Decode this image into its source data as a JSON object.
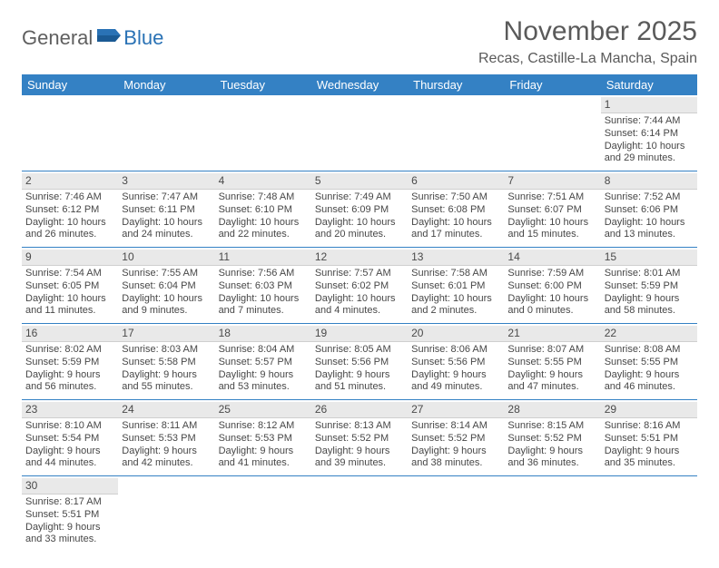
{
  "logo": {
    "textGray": "General",
    "textBlue": "Blue"
  },
  "title": "November 2025",
  "location": "Recas, Castille-La Mancha, Spain",
  "dayNames": [
    "Sunday",
    "Monday",
    "Tuesday",
    "Wednesday",
    "Thursday",
    "Friday",
    "Saturday"
  ],
  "colors": {
    "headerBg": "#3481c4",
    "headerText": "#ffffff",
    "dayNumBg": "#e9e9e9",
    "dayBorder": "#3481c4",
    "textGray": "#5a5a5a",
    "bodyText": "#474747",
    "logoGray": "#5f5f5f",
    "logoBlue": "#2a72b5"
  },
  "weeks": [
    [
      null,
      null,
      null,
      null,
      null,
      null,
      {
        "n": "1",
        "sr": "7:44 AM",
        "ss": "6:14 PM",
        "dl": "10 hours and 29 minutes."
      }
    ],
    [
      {
        "n": "2",
        "sr": "7:46 AM",
        "ss": "6:12 PM",
        "dl": "10 hours and 26 minutes."
      },
      {
        "n": "3",
        "sr": "7:47 AM",
        "ss": "6:11 PM",
        "dl": "10 hours and 24 minutes."
      },
      {
        "n": "4",
        "sr": "7:48 AM",
        "ss": "6:10 PM",
        "dl": "10 hours and 22 minutes."
      },
      {
        "n": "5",
        "sr": "7:49 AM",
        "ss": "6:09 PM",
        "dl": "10 hours and 20 minutes."
      },
      {
        "n": "6",
        "sr": "7:50 AM",
        "ss": "6:08 PM",
        "dl": "10 hours and 17 minutes."
      },
      {
        "n": "7",
        "sr": "7:51 AM",
        "ss": "6:07 PM",
        "dl": "10 hours and 15 minutes."
      },
      {
        "n": "8",
        "sr": "7:52 AM",
        "ss": "6:06 PM",
        "dl": "10 hours and 13 minutes."
      }
    ],
    [
      {
        "n": "9",
        "sr": "7:54 AM",
        "ss": "6:05 PM",
        "dl": "10 hours and 11 minutes."
      },
      {
        "n": "10",
        "sr": "7:55 AM",
        "ss": "6:04 PM",
        "dl": "10 hours and 9 minutes."
      },
      {
        "n": "11",
        "sr": "7:56 AM",
        "ss": "6:03 PM",
        "dl": "10 hours and 7 minutes."
      },
      {
        "n": "12",
        "sr": "7:57 AM",
        "ss": "6:02 PM",
        "dl": "10 hours and 4 minutes."
      },
      {
        "n": "13",
        "sr": "7:58 AM",
        "ss": "6:01 PM",
        "dl": "10 hours and 2 minutes."
      },
      {
        "n": "14",
        "sr": "7:59 AM",
        "ss": "6:00 PM",
        "dl": "10 hours and 0 minutes."
      },
      {
        "n": "15",
        "sr": "8:01 AM",
        "ss": "5:59 PM",
        "dl": "9 hours and 58 minutes."
      }
    ],
    [
      {
        "n": "16",
        "sr": "8:02 AM",
        "ss": "5:59 PM",
        "dl": "9 hours and 56 minutes."
      },
      {
        "n": "17",
        "sr": "8:03 AM",
        "ss": "5:58 PM",
        "dl": "9 hours and 55 minutes."
      },
      {
        "n": "18",
        "sr": "8:04 AM",
        "ss": "5:57 PM",
        "dl": "9 hours and 53 minutes."
      },
      {
        "n": "19",
        "sr": "8:05 AM",
        "ss": "5:56 PM",
        "dl": "9 hours and 51 minutes."
      },
      {
        "n": "20",
        "sr": "8:06 AM",
        "ss": "5:56 PM",
        "dl": "9 hours and 49 minutes."
      },
      {
        "n": "21",
        "sr": "8:07 AM",
        "ss": "5:55 PM",
        "dl": "9 hours and 47 minutes."
      },
      {
        "n": "22",
        "sr": "8:08 AM",
        "ss": "5:55 PM",
        "dl": "9 hours and 46 minutes."
      }
    ],
    [
      {
        "n": "23",
        "sr": "8:10 AM",
        "ss": "5:54 PM",
        "dl": "9 hours and 44 minutes."
      },
      {
        "n": "24",
        "sr": "8:11 AM",
        "ss": "5:53 PM",
        "dl": "9 hours and 42 minutes."
      },
      {
        "n": "25",
        "sr": "8:12 AM",
        "ss": "5:53 PM",
        "dl": "9 hours and 41 minutes."
      },
      {
        "n": "26",
        "sr": "8:13 AM",
        "ss": "5:52 PM",
        "dl": "9 hours and 39 minutes."
      },
      {
        "n": "27",
        "sr": "8:14 AM",
        "ss": "5:52 PM",
        "dl": "9 hours and 38 minutes."
      },
      {
        "n": "28",
        "sr": "8:15 AM",
        "ss": "5:52 PM",
        "dl": "9 hours and 36 minutes."
      },
      {
        "n": "29",
        "sr": "8:16 AM",
        "ss": "5:51 PM",
        "dl": "9 hours and 35 minutes."
      }
    ],
    [
      {
        "n": "30",
        "sr": "8:17 AM",
        "ss": "5:51 PM",
        "dl": "9 hours and 33 minutes."
      },
      null,
      null,
      null,
      null,
      null,
      null
    ]
  ],
  "labels": {
    "sunrise": "Sunrise: ",
    "sunset": "Sunset: ",
    "daylight": "Daylight: "
  }
}
